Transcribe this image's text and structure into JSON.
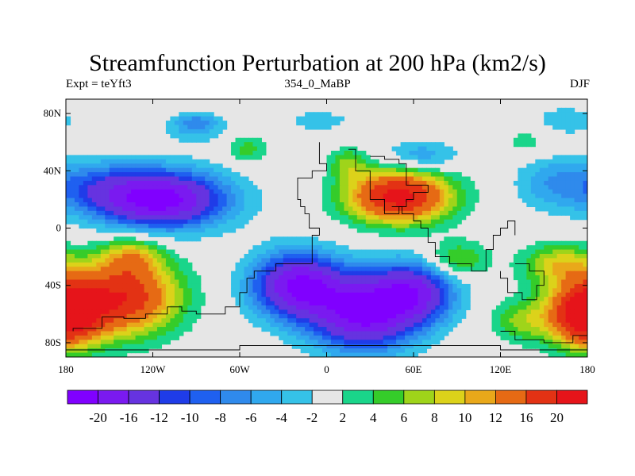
{
  "header": {
    "title": "Streamfunction Perturbation at 200 hPa (km2/s)",
    "left": "Expt = teYft3",
    "center": "354_0_MaBP",
    "right": "DJF"
  },
  "map": {
    "lon_range": [
      -180,
      180
    ],
    "lat_range": [
      -90,
      90
    ],
    "lon_ticks": [
      {
        "value": -180,
        "label": "180"
      },
      {
        "value": -120,
        "label": "120W"
      },
      {
        "value": -60,
        "label": "60W"
      },
      {
        "value": 0,
        "label": "0"
      },
      {
        "value": 60,
        "label": "60E"
      },
      {
        "value": 120,
        "label": "120E"
      },
      {
        "value": 180,
        "label": "180"
      }
    ],
    "lat_ticks": [
      {
        "value": 80,
        "label": "80N"
      },
      {
        "value": 40,
        "label": "40N"
      },
      {
        "value": 0,
        "label": "0"
      },
      {
        "value": -40,
        "label": "40S"
      },
      {
        "value": -80,
        "label": "80S"
      }
    ],
    "background_color": "#e6e6e6",
    "features": [
      {
        "lon": -115,
        "lat": 20,
        "amp": -22,
        "sx": 32,
        "sy": 14
      },
      {
        "lon": -160,
        "lat": 30,
        "amp": -6,
        "sx": 25,
        "sy": 12
      },
      {
        "lon": -175,
        "lat": -55,
        "amp": 12,
        "sx": 25,
        "sy": 18
      },
      {
        "lon": -135,
        "lat": -48,
        "amp": 16,
        "sx": 25,
        "sy": 18
      },
      {
        "lon": -135,
        "lat": -20,
        "amp": 8,
        "sx": 15,
        "sy": 10
      },
      {
        "lon": 50,
        "lat": 22,
        "amp": 22,
        "sx": 25,
        "sy": 13
      },
      {
        "lon": 15,
        "lat": 45,
        "amp": 6,
        "sx": 9,
        "sy": 8
      },
      {
        "lon": 65,
        "lat": 50,
        "amp": -6,
        "sx": 18,
        "sy": 8
      },
      {
        "lon": -20,
        "lat": -40,
        "amp": -20,
        "sx": 22,
        "sy": 16
      },
      {
        "lon": 25,
        "lat": -60,
        "amp": -20,
        "sx": 25,
        "sy": 18
      },
      {
        "lon": 60,
        "lat": -45,
        "amp": -16,
        "sx": 20,
        "sy": 15
      },
      {
        "lon": 90,
        "lat": -22,
        "amp": 7,
        "sx": 15,
        "sy": 9
      },
      {
        "lon": 160,
        "lat": -25,
        "amp": 8,
        "sx": 18,
        "sy": 10
      },
      {
        "lon": 178,
        "lat": -62,
        "amp": 16,
        "sx": 15,
        "sy": 15
      },
      {
        "lon": 135,
        "lat": -65,
        "amp": 6,
        "sx": 15,
        "sy": 10
      },
      {
        "lon": -90,
        "lat": 70,
        "amp": -5,
        "sx": 15,
        "sy": 7
      },
      {
        "lon": -90,
        "lat": 75,
        "amp": -3,
        "sx": 10,
        "sy": 4
      },
      {
        "lon": 155,
        "lat": 32,
        "amp": -5,
        "sx": 18,
        "sy": 14
      },
      {
        "lon": 165,
        "lat": 75,
        "amp": -4,
        "sx": 15,
        "sy": 7
      },
      {
        "lon": -55,
        "lat": 55,
        "amp": 5,
        "sx": 10,
        "sy": 7
      },
      {
        "lon": 140,
        "lat": 60,
        "amp": 3,
        "sx": 15,
        "sy": 8
      },
      {
        "lon": -5,
        "lat": 75,
        "amp": -3,
        "sx": 18,
        "sy": 6
      }
    ],
    "continents": [
      [
        [
          -5,
          60
        ],
        [
          -5,
          45
        ],
        [
          0,
          40
        ],
        [
          -10,
          35
        ],
        [
          -20,
          20
        ],
        [
          -18,
          15
        ],
        [
          -15,
          10
        ],
        [
          -12,
          0
        ],
        [
          -5,
          -5
        ],
        [
          -10,
          -25
        ],
        [
          -35,
          -30
        ],
        [
          -50,
          -35
        ],
        [
          -55,
          -45
        ],
        [
          -60,
          -55
        ],
        [
          -70,
          -60
        ],
        [
          -90,
          -58
        ],
        [
          -100,
          -55
        ],
        [
          -110,
          -60
        ],
        [
          -125,
          -63
        ],
        [
          -140,
          -62
        ],
        [
          -155,
          -70
        ],
        [
          -175,
          -72
        ]
      ],
      [
        [
          15,
          55
        ],
        [
          20,
          40
        ],
        [
          30,
          35
        ],
        [
          30,
          20
        ],
        [
          40,
          10
        ],
        [
          45,
          10
        ],
        [
          50,
          15
        ],
        [
          52,
          10
        ],
        [
          60,
          5
        ],
        [
          65,
          0
        ],
        [
          70,
          -10
        ],
        [
          75,
          -20
        ],
        [
          85,
          -25
        ],
        [
          100,
          -30
        ],
        [
          110,
          -15
        ],
        [
          115,
          -5
        ],
        [
          120,
          0
        ],
        [
          125,
          5
        ],
        [
          130,
          -5
        ]
      ],
      [
        [
          130,
          -25
        ],
        [
          140,
          -30
        ],
        [
          150,
          -40
        ],
        [
          145,
          -50
        ],
        [
          135,
          -45
        ],
        [
          125,
          -35
        ],
        [
          120,
          -30
        ]
      ],
      [
        [
          -180,
          -85
        ],
        [
          -120,
          -85
        ],
        [
          -60,
          -82
        ],
        [
          0,
          -82
        ],
        [
          60,
          -82
        ],
        [
          120,
          -85
        ],
        [
          180,
          -85
        ]
      ],
      [
        [
          120,
          -72
        ],
        [
          130,
          -78
        ],
        [
          150,
          -80
        ],
        [
          170,
          -75
        ],
        [
          180,
          -72
        ]
      ],
      [
        [
          30,
          50
        ],
        [
          40,
          48
        ],
        [
          50,
          45
        ],
        [
          55,
          30
        ],
        [
          65,
          30
        ],
        [
          70,
          25
        ],
        [
          60,
          20
        ],
        [
          55,
          15
        ],
        [
          45,
          15
        ]
      ]
    ]
  },
  "colorbar": {
    "labels": [
      "-20",
      "-16",
      "-12",
      "-10",
      "-8",
      "-6",
      "-4",
      "-2",
      "2",
      "4",
      "6",
      "8",
      "10",
      "12",
      "16",
      "20"
    ],
    "levels": [
      -20,
      -16,
      -12,
      -10,
      -8,
      -6,
      -4,
      -2,
      2,
      4,
      6,
      8,
      10,
      12,
      16,
      20
    ],
    "colors": [
      "#8000ff",
      "#7a1af0",
      "#6633e0",
      "#1f3ce8",
      "#1f60f0",
      "#2f8aec",
      "#30a8ee",
      "#35c2e8",
      "#e6e6e6",
      "#1ad58a",
      "#35cc2a",
      "#9fd41a",
      "#dcd21a",
      "#e9a81a",
      "#e66a14",
      "#e33214",
      "#e6141a"
    ]
  }
}
